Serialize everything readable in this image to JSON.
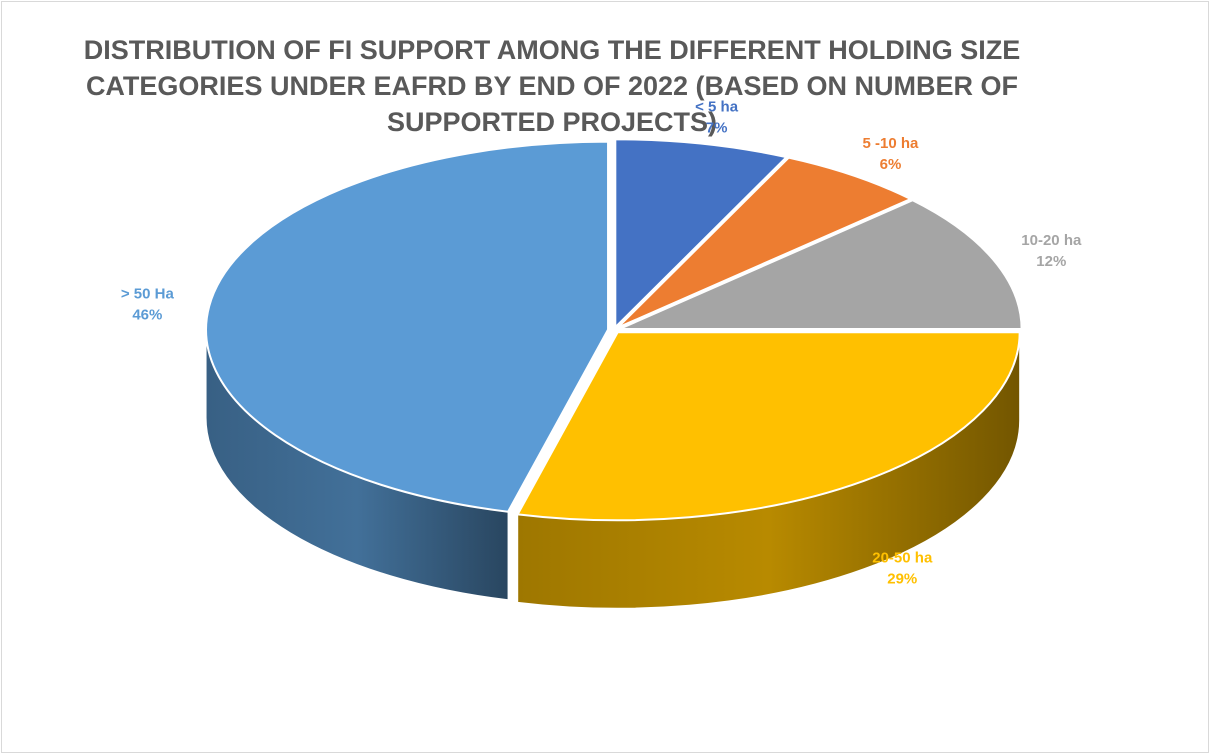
{
  "chart_data": {
    "type": "pie",
    "title": "DISTRIBUTION OF FI SUPPORT AMONG THE DIFFERENT HOLDING SIZE CATEGORIES UNDER EAFRD BY END OF 2022 (BASED ON NUMBER OF SUPPORTED PROJECTS)",
    "categories": [
      "< 5 ha",
      "5 -10 ha",
      "10-20 ha",
      "20-50 ha",
      "> 50 Ha"
    ],
    "values": [
      7,
      6,
      12,
      29,
      46
    ],
    "value_labels": [
      "7%",
      "6%",
      "12%",
      "29%",
      "46%"
    ],
    "colors": [
      "#4472C4",
      "#ED7D31",
      "#A5A5A5",
      "#FFC000",
      "#5B9BD5"
    ],
    "label_colors": [
      "#4472C4",
      "#ED7D31",
      "#A5A5A5",
      "#FFC000",
      "#5B9BD5"
    ],
    "style": "3d-exploded-tilted",
    "legend": "none (data labels)"
  }
}
